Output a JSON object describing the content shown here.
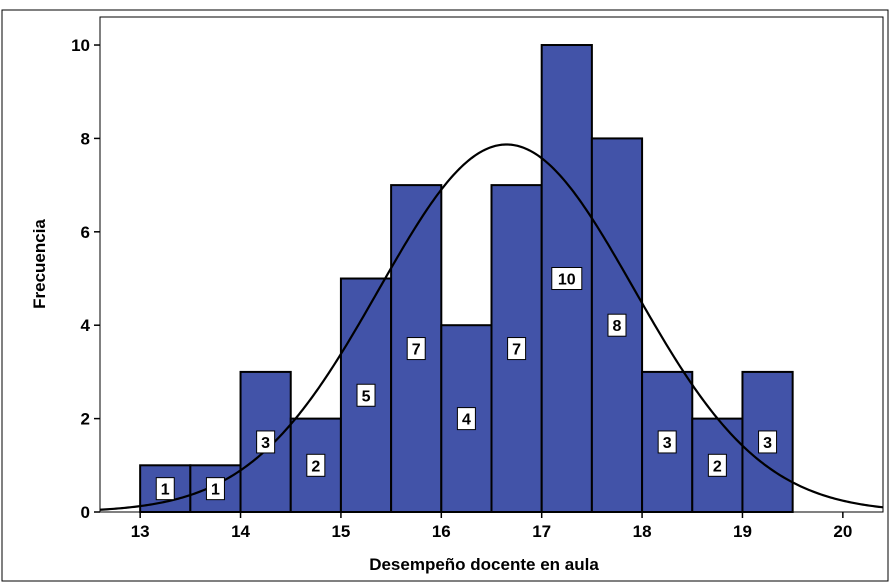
{
  "chart_data": {
    "type": "bar",
    "subtype": "histogram",
    "xlabel": "Desempeño docente en aula",
    "ylabel": "Frecuencia",
    "xlim": [
      12.6,
      20.4
    ],
    "ylim": [
      0,
      10.6
    ],
    "x_ticks": [
      "13",
      "14",
      "15",
      "16",
      "17",
      "18",
      "19",
      "20"
    ],
    "y_ticks": [
      "0",
      "2",
      "4",
      "6",
      "8",
      "10"
    ],
    "bin_width": 0.5,
    "bins": [
      {
        "start": 13.0,
        "end": 13.5,
        "count": 1,
        "label": "1"
      },
      {
        "start": 13.5,
        "end": 14.0,
        "count": 1,
        "label": "1"
      },
      {
        "start": 14.0,
        "end": 14.5,
        "count": 3,
        "label": "3"
      },
      {
        "start": 14.5,
        "end": 15.0,
        "count": 2,
        "label": "2"
      },
      {
        "start": 15.0,
        "end": 15.5,
        "count": 5,
        "label": "5"
      },
      {
        "start": 15.5,
        "end": 16.0,
        "count": 7,
        "label": "7"
      },
      {
        "start": 16.0,
        "end": 16.5,
        "count": 4,
        "label": "4"
      },
      {
        "start": 16.5,
        "end": 17.0,
        "count": 7,
        "label": "7"
      },
      {
        "start": 17.0,
        "end": 17.5,
        "count": 10,
        "label": "10"
      },
      {
        "start": 17.5,
        "end": 18.0,
        "count": 8,
        "label": "8"
      },
      {
        "start": 18.0,
        "end": 18.5,
        "count": 3,
        "label": "3"
      },
      {
        "start": 18.5,
        "end": 19.0,
        "count": 2,
        "label": "2"
      },
      {
        "start": 19.0,
        "end": 19.5,
        "count": 3,
        "label": "3"
      }
    ],
    "normal_curve": {
      "mean": 16.65,
      "sd": 1.27,
      "peak": 7.87
    },
    "colors": {
      "bar_fill": "#4253a8",
      "bar_stroke": "#000000",
      "curve": "#000000",
      "label_box": "#ffffff"
    },
    "grid": false,
    "legend": "none"
  }
}
